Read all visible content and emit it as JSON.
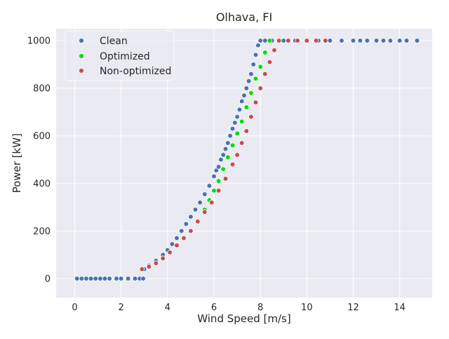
{
  "chart_data": {
    "type": "scatter",
    "title": "Olhava, FI",
    "xlabel": "Wind Speed [m/s]",
    "ylabel": "Power [kW]",
    "xlim": [
      -0.8,
      15.4
    ],
    "ylim": [
      -80,
      1050
    ],
    "xticks": [
      0,
      2,
      4,
      6,
      8,
      10,
      12,
      14
    ],
    "yticks": [
      0,
      200,
      400,
      600,
      800,
      1000
    ],
    "grid": true,
    "legend_position": "top-left",
    "series": [
      {
        "name": "Clean",
        "color": "#4c72b0",
        "points": [
          [
            0.1,
            0
          ],
          [
            0.3,
            0
          ],
          [
            0.5,
            0
          ],
          [
            0.7,
            0
          ],
          [
            0.9,
            0
          ],
          [
            1.1,
            0
          ],
          [
            1.3,
            0
          ],
          [
            1.5,
            0
          ],
          [
            1.8,
            0
          ],
          [
            2.0,
            0
          ],
          [
            2.3,
            0
          ],
          [
            2.6,
            0
          ],
          [
            2.8,
            0
          ],
          [
            2.95,
            0
          ],
          [
            3.0,
            40
          ],
          [
            3.2,
            55
          ],
          [
            3.5,
            75
          ],
          [
            3.8,
            100
          ],
          [
            4.0,
            120
          ],
          [
            4.2,
            145
          ],
          [
            4.4,
            170
          ],
          [
            4.6,
            200
          ],
          [
            4.8,
            230
          ],
          [
            5.0,
            260
          ],
          [
            5.2,
            290
          ],
          [
            5.4,
            320
          ],
          [
            5.6,
            355
          ],
          [
            5.8,
            390
          ],
          [
            6.0,
            430
          ],
          [
            6.1,
            455
          ],
          [
            6.2,
            470
          ],
          [
            6.3,
            500
          ],
          [
            6.4,
            520
          ],
          [
            6.5,
            545
          ],
          [
            6.6,
            570
          ],
          [
            6.7,
            600
          ],
          [
            6.8,
            630
          ],
          [
            6.9,
            655
          ],
          [
            7.0,
            680
          ],
          [
            7.1,
            710
          ],
          [
            7.2,
            745
          ],
          [
            7.3,
            770
          ],
          [
            7.4,
            800
          ],
          [
            7.5,
            830
          ],
          [
            7.6,
            860
          ],
          [
            7.7,
            900
          ],
          [
            7.8,
            940
          ],
          [
            7.9,
            980
          ],
          [
            8.0,
            1000
          ],
          [
            8.2,
            1000
          ],
          [
            8.5,
            1000
          ],
          [
            9.0,
            1000
          ],
          [
            9.5,
            1000
          ],
          [
            10.0,
            1000
          ],
          [
            10.5,
            1000
          ],
          [
            11.0,
            1000
          ],
          [
            11.5,
            1000
          ],
          [
            12.0,
            1000
          ],
          [
            12.3,
            1000
          ],
          [
            12.6,
            1000
          ],
          [
            13.0,
            1000
          ],
          [
            13.3,
            1000
          ],
          [
            13.6,
            1000
          ],
          [
            14.0,
            1000
          ],
          [
            14.3,
            1000
          ],
          [
            14.75,
            1000
          ]
        ]
      },
      {
        "name": "Optimized",
        "color": "#00dd00",
        "points": [
          [
            5.6,
            290
          ],
          [
            5.8,
            330
          ],
          [
            6.0,
            370
          ],
          [
            6.2,
            410
          ],
          [
            6.4,
            460
          ],
          [
            6.6,
            510
          ],
          [
            6.8,
            560
          ],
          [
            7.0,
            610
          ],
          [
            7.2,
            660
          ],
          [
            7.4,
            720
          ],
          [
            7.6,
            780
          ],
          [
            7.8,
            840
          ],
          [
            8.0,
            890
          ],
          [
            8.2,
            950
          ],
          [
            8.4,
            1000
          ]
        ]
      },
      {
        "name": "Non-optimized",
        "color": "#c44e52",
        "points": [
          [
            2.9,
            40
          ],
          [
            3.2,
            50
          ],
          [
            3.5,
            65
          ],
          [
            3.8,
            85
          ],
          [
            4.1,
            110
          ],
          [
            4.4,
            140
          ],
          [
            4.7,
            170
          ],
          [
            5.0,
            200
          ],
          [
            5.3,
            240
          ],
          [
            5.6,
            280
          ],
          [
            5.9,
            320
          ],
          [
            6.2,
            370
          ],
          [
            6.5,
            420
          ],
          [
            6.8,
            480
          ],
          [
            7.0,
            520
          ],
          [
            7.2,
            570
          ],
          [
            7.4,
            620
          ],
          [
            7.6,
            680
          ],
          [
            7.8,
            740
          ],
          [
            8.0,
            800
          ],
          [
            8.2,
            860
          ],
          [
            8.4,
            910
          ],
          [
            8.6,
            960
          ],
          [
            8.8,
            1000
          ],
          [
            9.2,
            1000
          ],
          [
            9.6,
            1000
          ],
          [
            10.0,
            1000
          ],
          [
            10.4,
            1000
          ],
          [
            10.8,
            1000
          ]
        ]
      }
    ]
  }
}
